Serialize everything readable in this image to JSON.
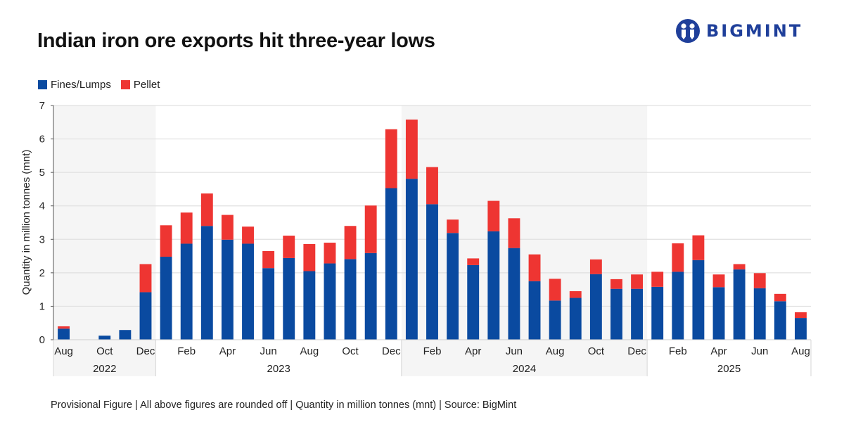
{
  "header": {
    "title": "Indian iron ore exports hit three-year lows",
    "logo_text": "BIGMINT"
  },
  "footer": {
    "note": "Provisional Figure | All above figures are rounded off | Quantity in million tonnes (mnt) | Source: BigMint"
  },
  "colors": {
    "fines_lumps": "#0a4aa0",
    "pellet": "#ee3532",
    "shade": "#f5f5f5",
    "grid": "#e0e0e0",
    "logo": "#1f3f9a"
  },
  "legend": {
    "items": [
      {
        "label": "Fines/Lumps",
        "color": "#0a4aa0"
      },
      {
        "label": "Pellet",
        "color": "#ee3532"
      }
    ],
    "placement": "top-left"
  },
  "chart_data": {
    "type": "bar",
    "stacked": true,
    "title": "Indian iron ore exports hit three-year lows",
    "xlabel": "",
    "ylabel": "Quantity in million tonnes (mnt)",
    "ylim": [
      0,
      7
    ],
    "yticks": [
      0,
      1,
      2,
      3,
      4,
      5,
      6,
      7
    ],
    "grid": true,
    "categories": [
      "Aug 2022",
      "Sep 2022",
      "Oct 2022",
      "Nov 2022",
      "Dec 2022",
      "Jan 2023",
      "Feb 2023",
      "Mar 2023",
      "Apr 2023",
      "May 2023",
      "Jun 2023",
      "Jul 2023",
      "Aug 2023",
      "Sep 2023",
      "Oct 2023",
      "Nov 2023",
      "Dec 2023",
      "Jan 2024",
      "Feb 2024",
      "Mar 2024",
      "Apr 2024",
      "May 2024",
      "Jun 2024",
      "Jul 2024",
      "Aug 2024",
      "Sep 2024",
      "Oct 2024",
      "Nov 2024",
      "Dec 2024",
      "Jan 2025",
      "Feb 2025",
      "Mar 2025",
      "Apr 2025",
      "May 2025",
      "Jun 2025",
      "Jul 2025",
      "Aug 2025"
    ],
    "tick_labels": [
      "Aug",
      "",
      "Oct",
      "",
      "Dec",
      "",
      "Feb",
      "",
      "Apr",
      "",
      "Jun",
      "",
      "Aug",
      "",
      "Oct",
      "",
      "Dec",
      "",
      "Feb",
      "",
      "Apr",
      "",
      "Jun",
      "",
      "Aug",
      "",
      "Oct",
      "",
      "Dec",
      "",
      "Feb",
      "",
      "Apr",
      "",
      "Jun",
      "",
      "Aug"
    ],
    "year_groups": [
      {
        "label": "2022",
        "start": 0,
        "count": 5,
        "shaded": true
      },
      {
        "label": "2023",
        "start": 5,
        "count": 12,
        "shaded": false
      },
      {
        "label": "2024",
        "start": 17,
        "count": 12,
        "shaded": true
      },
      {
        "label": "2025",
        "start": 29,
        "count": 8,
        "shaded": false
      }
    ],
    "series": [
      {
        "name": "Fines/Lumps",
        "color": "#0a4aa0",
        "values": [
          0.33,
          0,
          0.12,
          0.29,
          1.42,
          2.48,
          2.87,
          3.4,
          2.99,
          2.87,
          2.14,
          2.44,
          2.05,
          2.28,
          2.41,
          2.59,
          4.53,
          4.81,
          4.05,
          3.19,
          2.23,
          3.24,
          2.74,
          1.75,
          1.17,
          1.25,
          1.96,
          1.52,
          1.52,
          1.58,
          2.03,
          2.38,
          1.57,
          2.1,
          1.54,
          1.15,
          0.65
        ]
      },
      {
        "name": "Pellet",
        "color": "#ee3532",
        "values": [
          0.07,
          0,
          0,
          0,
          0.84,
          0.94,
          0.93,
          0.97,
          0.74,
          0.51,
          0.51,
          0.67,
          0.81,
          0.62,
          0.99,
          1.42,
          1.76,
          1.77,
          1.11,
          0.4,
          0.2,
          0.91,
          0.89,
          0.8,
          0.65,
          0.2,
          0.44,
          0.29,
          0.43,
          0.45,
          0.85,
          0.74,
          0.38,
          0.16,
          0.45,
          0.22,
          0.17
        ]
      }
    ]
  }
}
